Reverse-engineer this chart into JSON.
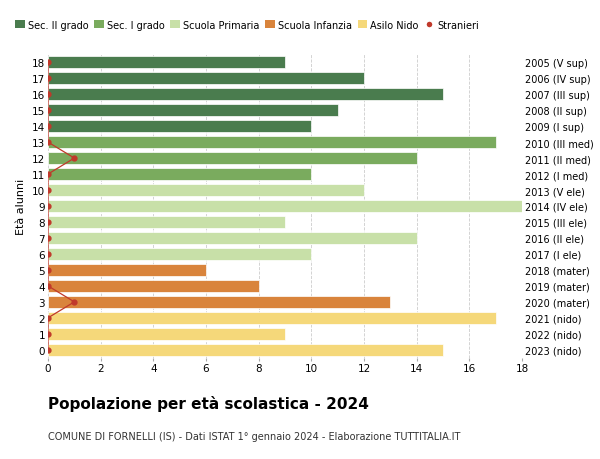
{
  "ages": [
    18,
    17,
    16,
    15,
    14,
    13,
    12,
    11,
    10,
    9,
    8,
    7,
    6,
    5,
    4,
    3,
    2,
    1,
    0
  ],
  "years": [
    "2005 (V sup)",
    "2006 (IV sup)",
    "2007 (III sup)",
    "2008 (II sup)",
    "2009 (I sup)",
    "2010 (III med)",
    "2011 (II med)",
    "2012 (I med)",
    "2013 (V ele)",
    "2014 (IV ele)",
    "2015 (III ele)",
    "2016 (II ele)",
    "2017 (I ele)",
    "2018 (mater)",
    "2019 (mater)",
    "2020 (mater)",
    "2021 (nido)",
    "2022 (nido)",
    "2023 (nido)"
  ],
  "values": [
    9,
    12,
    15,
    11,
    10,
    17,
    14,
    10,
    12,
    18,
    9,
    14,
    10,
    6,
    8,
    13,
    17,
    9,
    15
  ],
  "bar_colors": [
    "#4a7c4e",
    "#4a7c4e",
    "#4a7c4e",
    "#4a7c4e",
    "#4a7c4e",
    "#7aab5e",
    "#7aab5e",
    "#7aab5e",
    "#c8e0a8",
    "#c8e0a8",
    "#c8e0a8",
    "#c8e0a8",
    "#c8e0a8",
    "#d9843c",
    "#d9843c",
    "#d9843c",
    "#f5d87a",
    "#f5d87a",
    "#f5d87a"
  ],
  "legend_labels": [
    "Sec. II grado",
    "Sec. I grado",
    "Scuola Primaria",
    "Scuola Infanzia",
    "Asilo Nido",
    "Stranieri"
  ],
  "legend_colors": [
    "#4a7c4e",
    "#7aab5e",
    "#c8e0a8",
    "#d9843c",
    "#f5d87a",
    "#c0392b"
  ],
  "title": "Popolazione per età scolastica - 2024",
  "subtitle": "COMUNE DI FORNELLI (IS) - Dati ISTAT 1° gennaio 2024 - Elaborazione TUTTITALIA.IT",
  "ylabel_left": "Età alunni",
  "xlim": [
    0,
    18
  ],
  "background_color": "#ffffff",
  "grid_color": "#cccccc",
  "stranieri_x": [
    0,
    0,
    0,
    0,
    0,
    0,
    1,
    0,
    0,
    0,
    0,
    0,
    0,
    0,
    0,
    1,
    0,
    0,
    0
  ]
}
